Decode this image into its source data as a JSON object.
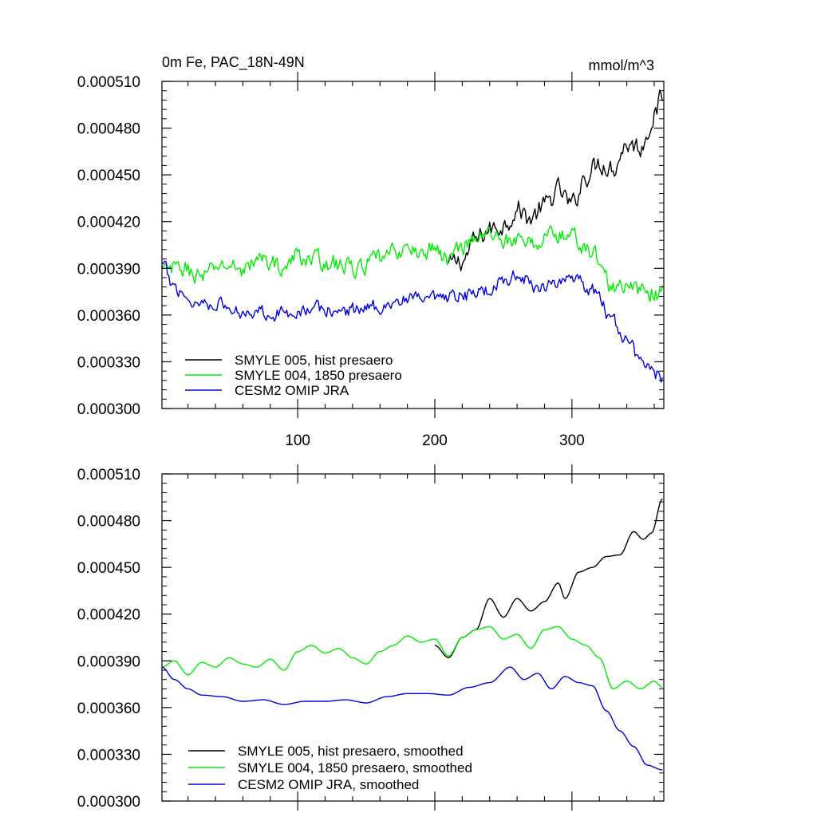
{
  "chart_data": [
    {
      "type": "line",
      "title": "0m Fe, PAC_18N-49N",
      "units": "mmol/m^3",
      "xlim": [
        1,
        367
      ],
      "ylim": [
        0.0003,
        0.00051
      ],
      "yticks": [
        "0.000300",
        "0.000330",
        "0.000360",
        "0.000390",
        "0.000420",
        "0.000450",
        "0.000480",
        "0.000510"
      ],
      "xticks": [
        "100",
        "200",
        "300"
      ],
      "legend_position": "bottom-left",
      "series": [
        {
          "name": "SMYLE 005, hist presaero",
          "color": "#000000",
          "start": 210,
          "knots": [
            [
              210,
              0.000392
            ],
            [
              220,
              0.000395
            ],
            [
              230,
              0.000408
            ],
            [
              240,
              0.000415
            ],
            [
              250,
              0.000418
            ],
            [
              260,
              0.000428
            ],
            [
              270,
              0.000422
            ],
            [
              280,
              0.00043
            ],
            [
              290,
              0.00044
            ],
            [
              300,
              0.00043
            ],
            [
              310,
              0.00045
            ],
            [
              320,
              0.000458
            ],
            [
              330,
              0.000455
            ],
            [
              340,
              0.00047
            ],
            [
              350,
              0.000468
            ],
            [
              360,
              0.000488
            ],
            [
              366,
              0.0005
            ]
          ],
          "amp": 6e-06
        },
        {
          "name": "SMYLE 004, 1850 presaero",
          "color": "#00ee00",
          "start": 1,
          "knots": [
            [
              1,
              0.000388
            ],
            [
              15,
              0.00039
            ],
            [
              30,
              0.000385
            ],
            [
              45,
              0.000392
            ],
            [
              60,
              0.00039
            ],
            [
              75,
              0.000396
            ],
            [
              90,
              0.00039
            ],
            [
              100,
              0.000398
            ],
            [
              115,
              0.000395
            ],
            [
              130,
              0.000392
            ],
            [
              145,
              0.00039
            ],
            [
              160,
              0.000396
            ],
            [
              175,
              0.000402
            ],
            [
              190,
              0.0004
            ],
            [
              200,
              0.000403
            ],
            [
              210,
              0.000395
            ],
            [
              220,
              0.000405
            ],
            [
              230,
              0.00041
            ],
            [
              240,
              0.000412
            ],
            [
              255,
              0.000408
            ],
            [
              270,
              0.000405
            ],
            [
              285,
              0.000412
            ],
            [
              300,
              0.00041
            ],
            [
              315,
              0.0004
            ],
            [
              330,
              0.000378
            ],
            [
              345,
              0.000376
            ],
            [
              366,
              0.000374
            ]
          ],
          "amp": 5e-06
        },
        {
          "name": "CESM2 OMIP JRA",
          "color": "#0000dd",
          "start": 1,
          "knots": [
            [
              1,
              0.000392
            ],
            [
              10,
              0.000378
            ],
            [
              25,
              0.000368
            ],
            [
              40,
              0.000368
            ],
            [
              55,
              0.000362
            ],
            [
              70,
              0.000363
            ],
            [
              85,
              0.000361
            ],
            [
              100,
              0.000363
            ],
            [
              115,
              0.000364
            ],
            [
              130,
              0.000362
            ],
            [
              145,
              0.000364
            ],
            [
              160,
              0.000366
            ],
            [
              175,
              0.000369
            ],
            [
              190,
              0.00037
            ],
            [
              205,
              0.000369
            ],
            [
              220,
              0.000372
            ],
            [
              235,
              0.000375
            ],
            [
              250,
              0.000383
            ],
            [
              260,
              0.000385
            ],
            [
              275,
              0.000378
            ],
            [
              290,
              0.000382
            ],
            [
              305,
              0.00038
            ],
            [
              318,
              0.000375
            ],
            [
              330,
              0.000355
            ],
            [
              340,
              0.000345
            ],
            [
              350,
              0.00033
            ],
            [
              366,
              0.00032
            ]
          ],
          "amp": 4e-06
        }
      ]
    },
    {
      "type": "line",
      "xlim": [
        1,
        367
      ],
      "ylim": [
        0.0003,
        0.00051
      ],
      "yticks": [
        "0.000300",
        "0.000330",
        "0.000360",
        "0.000390",
        "0.000420",
        "0.000450",
        "0.000480",
        "0.000510"
      ],
      "legend_position": "bottom-left",
      "series": [
        {
          "name": "SMYLE 005, hist presaero, smoothed",
          "color": "#000000",
          "start": 200,
          "knots": [
            [
              200,
              0.0004
            ],
            [
              210,
              0.000392
            ],
            [
              220,
              0.000405
            ],
            [
              230,
              0.00041
            ],
            [
              240,
              0.00043
            ],
            [
              250,
              0.000418
            ],
            [
              260,
              0.00043
            ],
            [
              270,
              0.000422
            ],
            [
              280,
              0.000428
            ],
            [
              290,
              0.00044
            ],
            [
              295,
              0.00043
            ],
            [
              305,
              0.000447
            ],
            [
              315,
              0.00045
            ],
            [
              325,
              0.000457
            ],
            [
              335,
              0.000458
            ],
            [
              345,
              0.000473
            ],
            [
              352,
              0.000468
            ],
            [
              358,
              0.000472
            ],
            [
              366,
              0.000494
            ]
          ],
          "amp": 0.0
        },
        {
          "name": "SMYLE 004, 1850 presaero, smoothed",
          "color": "#00ee00",
          "start": 1,
          "knots": [
            [
              1,
              0.000386
            ],
            [
              10,
              0.00039
            ],
            [
              20,
              0.000381
            ],
            [
              30,
              0.000389
            ],
            [
              40,
              0.000386
            ],
            [
              50,
              0.000392
            ],
            [
              60,
              0.000388
            ],
            [
              70,
              0.000386
            ],
            [
              80,
              0.000391
            ],
            [
              90,
              0.000384
            ],
            [
              100,
              0.000396
            ],
            [
              110,
              0.0004
            ],
            [
              120,
              0.000395
            ],
            [
              130,
              0.000398
            ],
            [
              140,
              0.000392
            ],
            [
              150,
              0.000388
            ],
            [
              160,
              0.000396
            ],
            [
              170,
              0.0004
            ],
            [
              180,
              0.000406
            ],
            [
              190,
              0.000402
            ],
            [
              200,
              0.000404
            ],
            [
              210,
              0.000393
            ],
            [
              220,
              0.000405
            ],
            [
              230,
              0.00041
            ],
            [
              240,
              0.000412
            ],
            [
              250,
              0.000404
            ],
            [
              260,
              0.000407
            ],
            [
              270,
              0.000398
            ],
            [
              280,
              0.00041
            ],
            [
              290,
              0.000412
            ],
            [
              300,
              0.000404
            ],
            [
              310,
              0.0004
            ],
            [
              320,
              0.000392
            ],
            [
              330,
              0.000372
            ],
            [
              340,
              0.000377
            ],
            [
              350,
              0.000372
            ],
            [
              360,
              0.000377
            ],
            [
              366,
              0.000373
            ]
          ],
          "amp": 0.0
        },
        {
          "name": "CESM2 OMIP JRA, smoothed",
          "color": "#0000dd",
          "start": 1,
          "knots": [
            [
              1,
              0.000386
            ],
            [
              10,
              0.000378
            ],
            [
              20,
              0.000372
            ],
            [
              30,
              0.000368
            ],
            [
              45,
              0.000367
            ],
            [
              60,
              0.000364
            ],
            [
              75,
              0.000365
            ],
            [
              90,
              0.000362
            ],
            [
              105,
              0.000364
            ],
            [
              120,
              0.000364
            ],
            [
              135,
              0.000365
            ],
            [
              150,
              0.000363
            ],
            [
              165,
              0.000367
            ],
            [
              180,
              0.000369
            ],
            [
              195,
              0.000369
            ],
            [
              210,
              0.000368
            ],
            [
              225,
              0.000373
            ],
            [
              240,
              0.000376
            ],
            [
              255,
              0.000386
            ],
            [
              265,
              0.000378
            ],
            [
              275,
              0.000382
            ],
            [
              285,
              0.000372
            ],
            [
              295,
              0.00038
            ],
            [
              305,
              0.000376
            ],
            [
              315,
              0.000374
            ],
            [
              325,
              0.000358
            ],
            [
              335,
              0.000345
            ],
            [
              345,
              0.000335
            ],
            [
              355,
              0.000323
            ],
            [
              366,
              0.00032
            ]
          ],
          "amp": 0.0
        }
      ]
    }
  ]
}
